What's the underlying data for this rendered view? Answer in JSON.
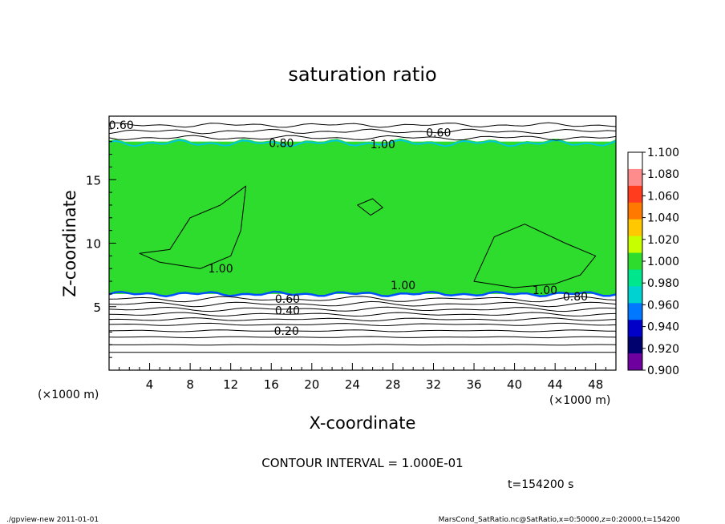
{
  "chart_data": {
    "type": "heatmap",
    "title": "saturation ratio",
    "xlabel": "X-coordinate",
    "ylabel": "Z-coordinate",
    "x_unit": "(×1000 m)",
    "y_unit": "(×1000 m)",
    "xlim": [
      0,
      50
    ],
    "ylim": [
      0,
      20
    ],
    "x_ticks": [
      "4",
      "8",
      "12",
      "16",
      "20",
      "24",
      "28",
      "32",
      "36",
      "40",
      "44",
      "48"
    ],
    "y_ticks": [
      "5",
      "10",
      "15"
    ],
    "colorbar": {
      "min": 0.9,
      "max": 1.1,
      "labels": [
        "1.100",
        "1.080",
        "1.060",
        "1.040",
        "1.020",
        "1.000",
        "0.980",
        "0.960",
        "0.940",
        "0.920",
        "0.900"
      ],
      "colors": [
        "#ffffff",
        "#ff8c8c",
        "#ff3c1e",
        "#ff7800",
        "#ffc800",
        "#c8ff00",
        "#2ddc2d",
        "#00e68c",
        "#00d2d2",
        "#0078ff",
        "#0000c8",
        "#00006e",
        "#6e00a0"
      ]
    },
    "fields": {
      "dry_base_top": 6.0,
      "saturated_layer": [
        6.0,
        18.0
      ],
      "background_value": 0.98,
      "saturated_value": 1.0
    },
    "contour_labels": [
      {
        "text": "0.60",
        "x": 1.2,
        "z": 19.3
      },
      {
        "text": "0.60",
        "x": 32.5,
        "z": 18.7
      },
      {
        "text": "0.80",
        "x": 17.0,
        "z": 17.9
      },
      {
        "text": "1.00",
        "x": 27.0,
        "z": 17.8
      },
      {
        "text": "1.00",
        "x": 11.0,
        "z": 8.0
      },
      {
        "text": "1.00",
        "x": 29.0,
        "z": 6.7
      },
      {
        "text": "1.00",
        "x": 43.0,
        "z": 6.3
      },
      {
        "text": "0.80",
        "x": 46.0,
        "z": 5.8
      },
      {
        "text": "0.60",
        "x": 17.6,
        "z": 5.6
      },
      {
        "text": "0.40",
        "x": 17.6,
        "z": 4.7
      },
      {
        "text": "0.20",
        "x": 17.5,
        "z": 3.1
      }
    ],
    "contour_interval_text": "CONTOUR INTERVAL = 1.000E-01",
    "time_text": "t=154200 s"
  },
  "footer": {
    "left": "./gpview-new  2011-01-01",
    "right": "MarsCond_SatRatio.nc@SatRatio,x=0:50000,z=0:20000,t=154200"
  }
}
